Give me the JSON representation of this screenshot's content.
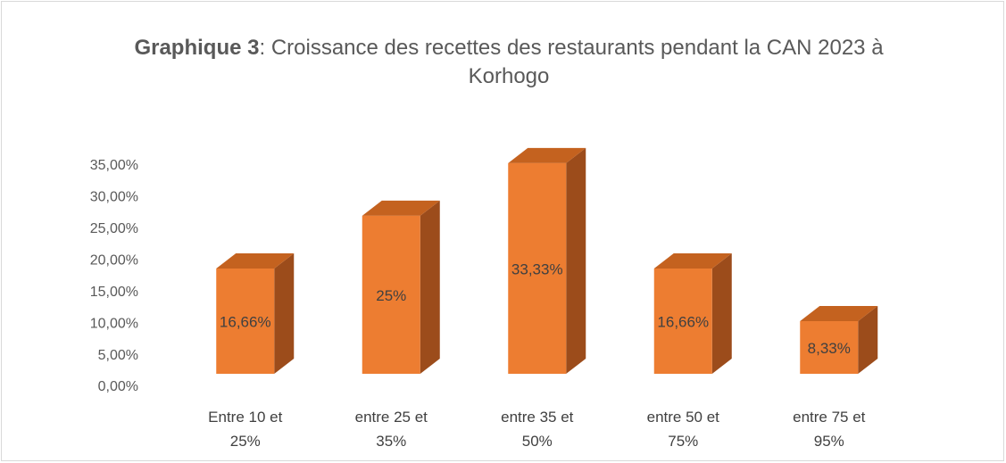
{
  "chart_data": {
    "type": "bar3d",
    "title_bold": "Graphique 3",
    "title": ": Croissance des recettes des restaurants pendant la CAN 2023 à Korhogo",
    "categories": [
      "Entre 10 et 25%",
      "entre 25 et 35%",
      "entre 35 et 50%",
      "entre 50 et 75%",
      "entre 75 et 95%"
    ],
    "values": [
      16.66,
      25,
      33.33,
      16.66,
      8.33
    ],
    "value_labels": [
      "16,66%",
      "25%",
      "33,33%",
      "16,66%",
      "8,33%"
    ],
    "color": "#ed7d31",
    "ylim": [
      0,
      35
    ],
    "yticks": [
      {
        "value": 0,
        "label": "0,00%"
      },
      {
        "value": 5,
        "label": "5,00%"
      },
      {
        "value": 10,
        "label": "10,00%"
      },
      {
        "value": 15,
        "label": "15,00%"
      },
      {
        "value": 20,
        "label": "20,00%"
      },
      {
        "value": 25,
        "label": "25,00%"
      },
      {
        "value": 30,
        "label": "30,00%"
      },
      {
        "value": 35,
        "label": "35,00%"
      }
    ],
    "grid": false
  }
}
